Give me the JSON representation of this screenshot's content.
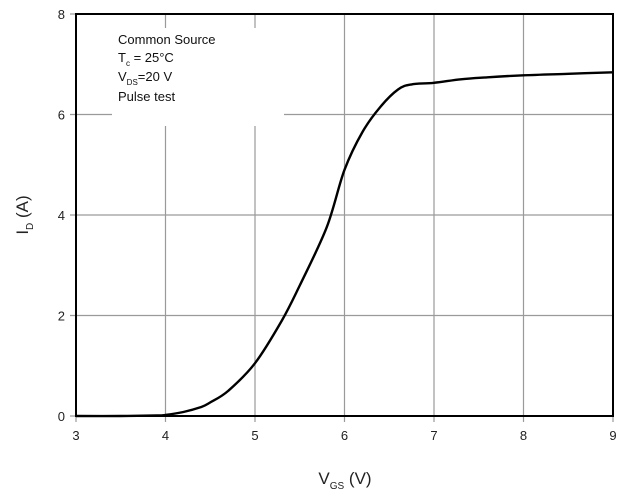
{
  "chart_data": {
    "type": "line",
    "title": "",
    "xlabel": {
      "main": "V",
      "sub": "GS",
      "unit": " (V)"
    },
    "ylabel": {
      "main": "I",
      "sub": "D",
      "unit": " (A)"
    },
    "xlim": [
      3,
      9
    ],
    "ylim": [
      0,
      8
    ],
    "x_ticks": [
      "3",
      "4",
      "5",
      "6",
      "7",
      "8",
      "9"
    ],
    "y_ticks": [
      "0",
      "2",
      "4",
      "6",
      "8"
    ],
    "grid": true,
    "legend": "none",
    "annotation": {
      "line1": "Common Source",
      "line2_main": "T",
      "line2_sub": "c",
      "line2_rest": " = 25°C",
      "line3_main": "V",
      "line3_sub": "DS",
      "line3_rest": "=20 V",
      "line4": "Pulse test"
    },
    "series": [
      {
        "color": "#000000",
        "x": [
          3.0,
          3.5,
          3.9,
          4.0,
          4.2,
          4.4,
          4.5,
          4.7,
          5.0,
          5.3,
          5.5,
          5.8,
          6.0,
          6.2,
          6.4,
          6.6,
          6.75,
          7.0,
          7.3,
          7.6,
          8.0,
          8.5,
          9.0
        ],
        "y": [
          0.0,
          0.0,
          0.01,
          0.02,
          0.08,
          0.18,
          0.27,
          0.5,
          1.05,
          1.9,
          2.6,
          3.75,
          4.9,
          5.65,
          6.15,
          6.5,
          6.6,
          6.63,
          6.7,
          6.74,
          6.78,
          6.81,
          6.84
        ]
      }
    ]
  }
}
